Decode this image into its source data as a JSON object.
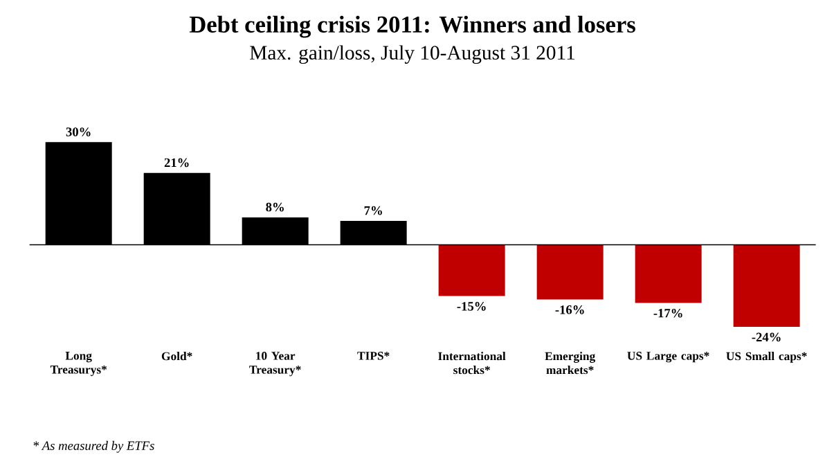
{
  "chart_data": {
    "type": "bar",
    "title": "Debt ceiling crisis 2011: Winners and losers",
    "subtitle": "Max. gain/loss, July 10-August 31 2011",
    "categories": [
      "Long Treasurys*",
      "Gold*",
      "10 Year Treasury*",
      "TIPS*",
      "International stocks*",
      "Emerging markets*",
      "US Large caps*",
      "US Small caps*"
    ],
    "values": [
      30,
      21,
      8,
      7,
      -15,
      -16,
      -17,
      -24
    ],
    "value_labels": [
      "30%",
      "21%",
      "8%",
      "7%",
      "-15%",
      "-16%",
      "-17%",
      "-24%"
    ],
    "colors": [
      "#000000",
      "#000000",
      "#000000",
      "#000000",
      "#c00000",
      "#c00000",
      "#c00000",
      "#c00000"
    ],
    "annotations": [
      "* As measured by ETFs"
    ]
  }
}
